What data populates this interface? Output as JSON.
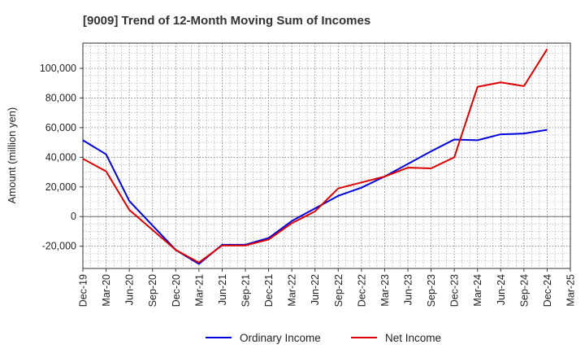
{
  "chart_data": {
    "type": "line",
    "title": "[9009]  Trend of 12-Month Moving Sum of Incomes",
    "xlabel": "",
    "ylabel": "Amount (million yen)",
    "categories": [
      "Dec-19",
      "Mar-20",
      "Jun-20",
      "Sep-20",
      "Dec-20",
      "Mar-21",
      "Jun-21",
      "Sep-21",
      "Dec-21",
      "Mar-22",
      "Jun-22",
      "Sep-22",
      "Dec-22",
      "Mar-23",
      "Jun-23",
      "Sep-23",
      "Dec-23",
      "Mar-24",
      "Jun-24",
      "Sep-24",
      "Dec-24",
      "Mar-25"
    ],
    "ylim": [
      -35000,
      117000
    ],
    "yticks": [
      -20000,
      0,
      20000,
      40000,
      60000,
      80000,
      100000
    ],
    "ytick_labels": [
      "-20,000",
      "0",
      "20,000",
      "40,000",
      "60,000",
      "80,000",
      "100,000"
    ],
    "grid": true,
    "legend": "bottom",
    "series": [
      {
        "name": "Ordinary Income",
        "color": "#0000dd",
        "values": [
          51500,
          42000,
          10500,
          -6000,
          -22500,
          -32000,
          -19000,
          -19000,
          -14500,
          -3000,
          5500,
          14000,
          19500,
          27000,
          35500,
          44000,
          52000,
          51500,
          55500,
          56000,
          58500,
          null
        ]
      },
      {
        "name": "Net Income",
        "color": "#dd0000",
        "values": [
          39000,
          30500,
          4500,
          -9000,
          -22500,
          -31000,
          -19500,
          -19500,
          -15500,
          -4500,
          3500,
          19000,
          23000,
          27000,
          33000,
          32500,
          40000,
          87500,
          90500,
          88000,
          113000,
          null
        ]
      }
    ]
  }
}
